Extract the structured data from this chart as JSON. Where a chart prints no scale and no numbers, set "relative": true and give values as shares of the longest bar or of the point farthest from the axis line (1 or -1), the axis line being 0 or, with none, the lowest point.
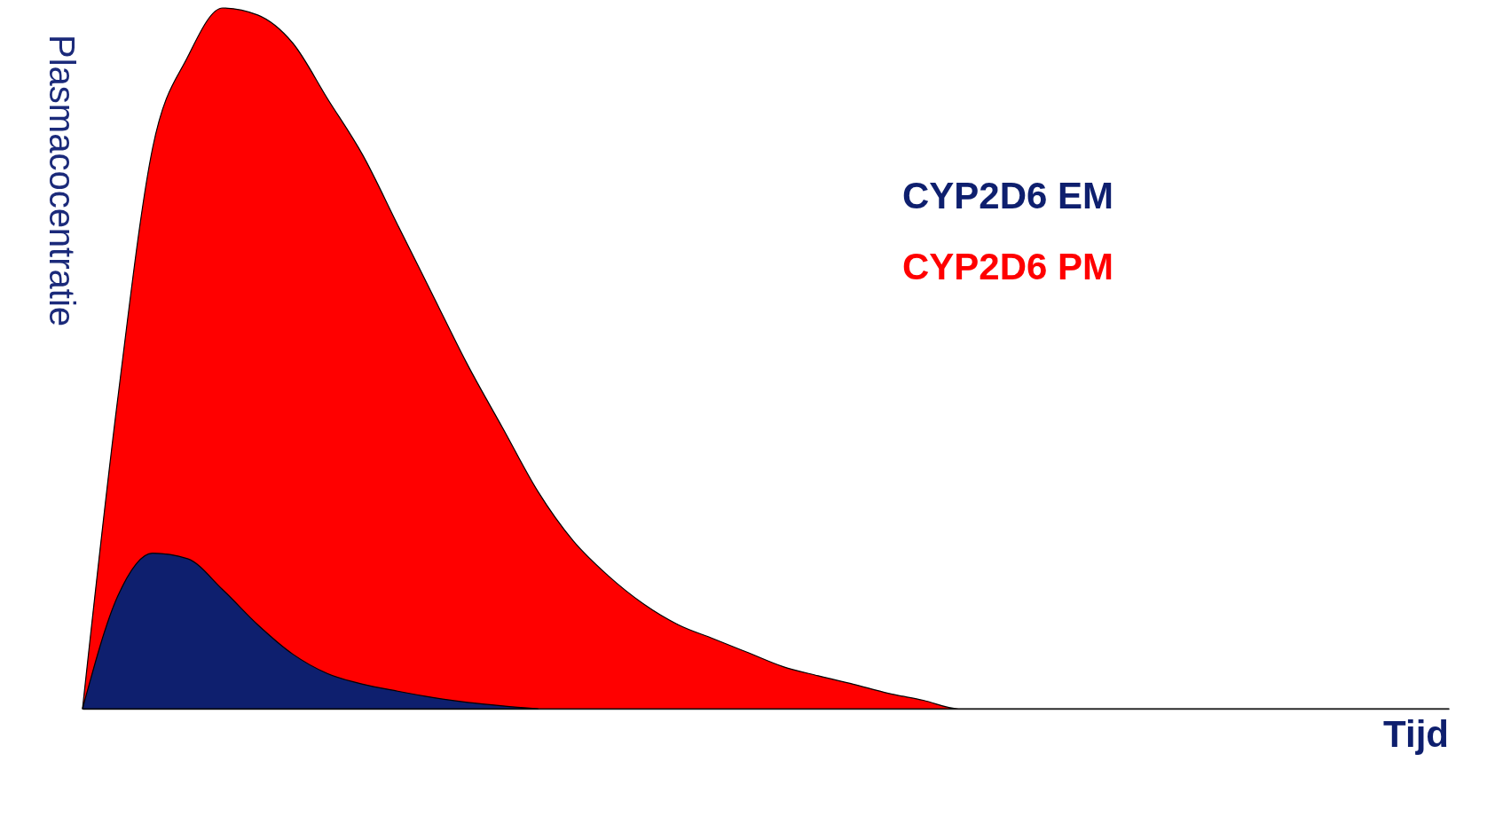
{
  "chart_data": {
    "type": "area",
    "relative": true,
    "xlabel": "Tijd",
    "ylabel": "Plasmacocentratie",
    "legend": "top right",
    "categories": [
      null,
      null,
      null,
      null,
      null,
      null,
      null,
      null,
      null,
      null,
      null,
      null,
      null,
      null,
      null,
      null,
      null,
      null,
      null,
      null,
      null,
      null,
      null,
      null,
      null,
      null,
      null,
      null,
      null,
      null,
      null,
      null,
      null,
      null,
      null,
      null,
      null,
      null,
      null,
      null
    ],
    "series": [
      {
        "name": "CYP2D6 PM",
        "color": "#ff0000",
        "values": [
          0,
          0.44,
          0.8,
          0.93,
          1,
          0.99,
          0.95,
          0.87,
          0.79,
          0.69,
          0.59,
          0.49,
          0.4,
          0.31,
          0.24,
          0.19,
          0.15,
          0.12,
          0.1,
          0.08,
          0.06,
          0.047,
          0.035,
          0.022,
          0.012,
          0,
          0,
          0,
          0,
          0,
          0,
          0,
          0,
          0,
          0,
          0,
          0,
          0,
          0,
          0
        ]
      },
      {
        "name": "CYP2D6 EM",
        "color": "#0e1f6e",
        "values": [
          0,
          0.16,
          0.222,
          0.214,
          0.17,
          0.12,
          0.078,
          0.05,
          0.035,
          0.025,
          0.016,
          0.009,
          0.004,
          0,
          null,
          null,
          null,
          null,
          null,
          null,
          null,
          null,
          null,
          null,
          null,
          null,
          null,
          null,
          null,
          null,
          null,
          null,
          null,
          null,
          null,
          null,
          null,
          null,
          null,
          null
        ]
      }
    ]
  }
}
